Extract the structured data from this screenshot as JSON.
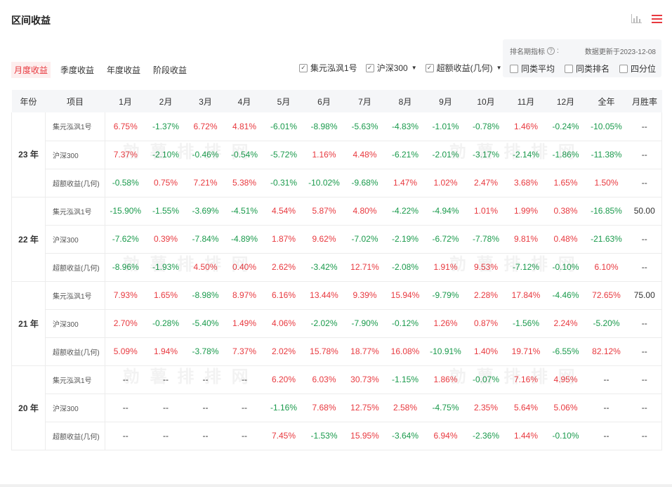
{
  "title": "区间收益",
  "tabs": [
    {
      "label": "月度收益",
      "active": true
    },
    {
      "label": "季度收益",
      "active": false
    },
    {
      "label": "年度收益",
      "active": false
    },
    {
      "label": "阶段收益",
      "active": false
    }
  ],
  "filters": {
    "fund": "集元泓沨1号",
    "benchmark": "沪深300",
    "excess": "超额收益(几何)"
  },
  "rank": {
    "label": "排名期指标",
    "help": "?",
    "colon": ":",
    "update": "数据更新于2023-12-08",
    "options": [
      "同类平均",
      "同类排名",
      "四分位"
    ]
  },
  "colors": {
    "positive": "#e8393f",
    "negative": "#1a9a4c",
    "accent": "#e8393f"
  },
  "watermark": "勍 薯 排 排 网",
  "table": {
    "headers": [
      "年份",
      "项目",
      "1月",
      "2月",
      "3月",
      "4月",
      "5月",
      "6月",
      "7月",
      "8月",
      "9月",
      "10月",
      "11月",
      "12月",
      "全年",
      "月胜率"
    ],
    "groups": [
      {
        "year": "23 年",
        "rows": [
          {
            "item": "集元泓沨1号",
            "values": [
              "6.75%",
              "-1.37%",
              "6.72%",
              "4.81%",
              "-6.01%",
              "-8.98%",
              "-5.63%",
              "-4.83%",
              "-1.01%",
              "-0.78%",
              "1.46%",
              "-0.24%",
              "-10.05%",
              "--"
            ]
          },
          {
            "item": "沪深300",
            "values": [
              "7.37%",
              "-2.10%",
              "-0.46%",
              "-0.54%",
              "-5.72%",
              "1.16%",
              "4.48%",
              "-6.21%",
              "-2.01%",
              "-3.17%",
              "-2.14%",
              "-1.86%",
              "-11.38%",
              "--"
            ]
          },
          {
            "item": "超额收益(几何)",
            "values": [
              "-0.58%",
              "0.75%",
              "7.21%",
              "5.38%",
              "-0.31%",
              "-10.02%",
              "-9.68%",
              "1.47%",
              "1.02%",
              "2.47%",
              "3.68%",
              "1.65%",
              "1.50%",
              "--"
            ]
          }
        ]
      },
      {
        "year": "22 年",
        "rows": [
          {
            "item": "集元泓沨1号",
            "values": [
              "-15.90%",
              "-1.55%",
              "-3.69%",
              "-4.51%",
              "4.54%",
              "5.87%",
              "4.80%",
              "-4.22%",
              "-4.94%",
              "1.01%",
              "1.99%",
              "0.38%",
              "-16.85%",
              "50.00"
            ]
          },
          {
            "item": "沪深300",
            "values": [
              "-7.62%",
              "0.39%",
              "-7.84%",
              "-4.89%",
              "1.87%",
              "9.62%",
              "-7.02%",
              "-2.19%",
              "-6.72%",
              "-7.78%",
              "9.81%",
              "0.48%",
              "-21.63%",
              "--"
            ]
          },
          {
            "item": "超额收益(几何)",
            "values": [
              "-8.96%",
              "-1.93%",
              "4.50%",
              "0.40%",
              "2.62%",
              "-3.42%",
              "12.71%",
              "-2.08%",
              "1.91%",
              "9.53%",
              "-7.12%",
              "-0.10%",
              "6.10%",
              "--"
            ]
          }
        ]
      },
      {
        "year": "21 年",
        "rows": [
          {
            "item": "集元泓沨1号",
            "values": [
              "7.93%",
              "1.65%",
              "-8.98%",
              "8.97%",
              "6.16%",
              "13.44%",
              "9.39%",
              "15.94%",
              "-9.79%",
              "2.28%",
              "17.84%",
              "-4.46%",
              "72.65%",
              "75.00"
            ]
          },
          {
            "item": "沪深300",
            "values": [
              "2.70%",
              "-0.28%",
              "-5.40%",
              "1.49%",
              "4.06%",
              "-2.02%",
              "-7.90%",
              "-0.12%",
              "1.26%",
              "0.87%",
              "-1.56%",
              "2.24%",
              "-5.20%",
              "--"
            ]
          },
          {
            "item": "超额收益(几何)",
            "values": [
              "5.09%",
              "1.94%",
              "-3.78%",
              "7.37%",
              "2.02%",
              "15.78%",
              "18.77%",
              "16.08%",
              "-10.91%",
              "1.40%",
              "19.71%",
              "-6.55%",
              "82.12%",
              "--"
            ]
          }
        ]
      },
      {
        "year": "20 年",
        "rows": [
          {
            "item": "集元泓沨1号",
            "values": [
              "--",
              "--",
              "--",
              "--",
              "6.20%",
              "6.03%",
              "30.73%",
              "-1.15%",
              "1.86%",
              "-0.07%",
              "7.16%",
              "4.95%",
              "--",
              "--"
            ]
          },
          {
            "item": "沪深300",
            "values": [
              "--",
              "--",
              "--",
              "--",
              "-1.16%",
              "7.68%",
              "12.75%",
              "2.58%",
              "-4.75%",
              "2.35%",
              "5.64%",
              "5.06%",
              "--",
              "--"
            ]
          },
          {
            "item": "超额收益(几何)",
            "values": [
              "--",
              "--",
              "--",
              "--",
              "7.45%",
              "-1.53%",
              "15.95%",
              "-3.64%",
              "6.94%",
              "-2.36%",
              "1.44%",
              "-0.10%",
              "--",
              "--"
            ]
          }
        ]
      }
    ]
  }
}
